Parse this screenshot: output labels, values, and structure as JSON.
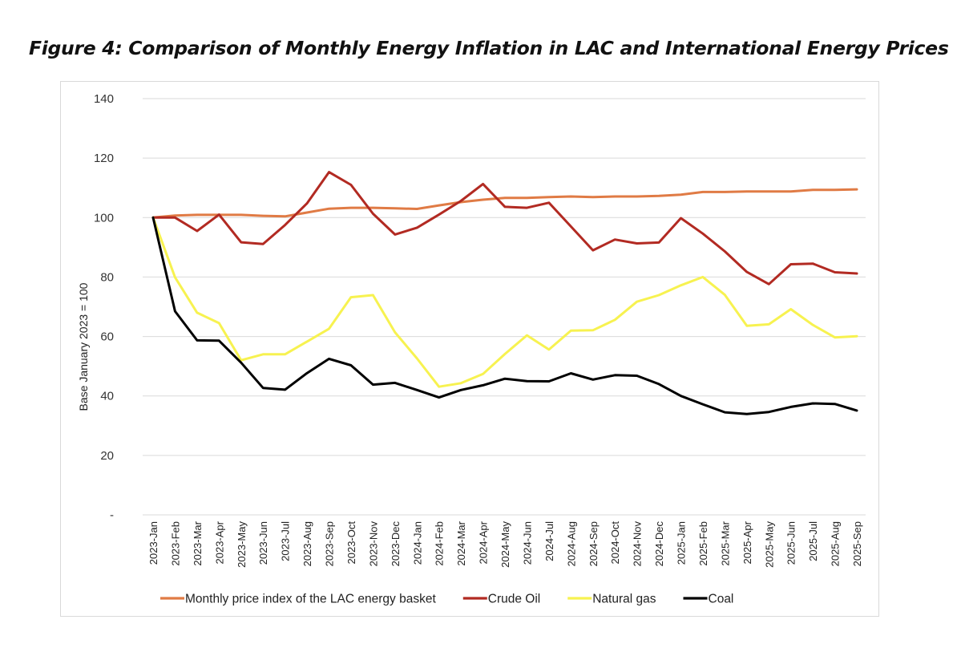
{
  "figure": {
    "title": "Figure 4: Comparison of Monthly Energy Inflation in LAC and International Energy Prices"
  },
  "chart_data": {
    "type": "line",
    "title": "Figure 4: Comparison of Monthly Energy Inflation in LAC and International Energy Prices",
    "xlabel": "",
    "ylabel": "Base January 2023 = 100",
    "ylim": [
      0,
      140
    ],
    "yticks": [
      0,
      20,
      40,
      60,
      80,
      100,
      120,
      140
    ],
    "ytick_labels": [
      "-",
      "20",
      "40",
      "60",
      "80",
      "100",
      "120",
      "140"
    ],
    "grid": "horizontal",
    "legend_position": "bottom",
    "x": [
      "2023-Jan",
      "2023-Feb",
      "2023-Mar",
      "2023-Apr",
      "2023-May",
      "2023-Jun",
      "2023-Jul",
      "2023-Aug",
      "2023-Sep",
      "2023-Oct",
      "2023-Nov",
      "2023-Dec",
      "2024-Jan",
      "2024-Feb",
      "2024-Mar",
      "2024-Apr",
      "2024-May",
      "2024-Jun",
      "2024-Jul",
      "2024-Aug",
      "2024-Sep",
      "2024-Oct",
      "2024-Nov",
      "2024-Dec",
      "2025-Jan",
      "2025-Feb",
      "2025-Mar",
      "2025-Apr",
      "2025-May",
      "2025-Jun",
      "2025-Jul",
      "2025-Aug",
      "2025-Sep"
    ],
    "series": [
      {
        "name": "Monthly price index of the LAC energy basket",
        "color": "#e07b45",
        "values": [
          100,
          100.7,
          100.9,
          100.9,
          100.9,
          100.6,
          100.4,
          101.7,
          103.0,
          103.3,
          103.3,
          103.1,
          102.9,
          104.1,
          105.2,
          106.0,
          106.6,
          106.6,
          106.9,
          107.1,
          106.9,
          107.1,
          107.1,
          107.3,
          107.7,
          108.6,
          108.6,
          108.8,
          108.8,
          108.8,
          109.3,
          109.3,
          109.5
        ]
      },
      {
        "name": "Crude Oil",
        "color": "#b22a22",
        "values": [
          100,
          100,
          95.5,
          101,
          91.7,
          91.1,
          97.5,
          104.8,
          115.3,
          111.0,
          101.3,
          94.3,
          96.6,
          101.0,
          105.6,
          111.3,
          103.6,
          103.3,
          105.0,
          97.0,
          89.0,
          92.6,
          91.3,
          91.6,
          99.8,
          94.6,
          88.6,
          81.7,
          77.6,
          84.3,
          84.5,
          81.6,
          81.2
        ]
      },
      {
        "name": "Natural gas",
        "color": "#f7f250",
        "values": [
          100,
          79.9,
          68.0,
          64.5,
          52.0,
          54.0,
          54.0,
          58.3,
          62.6,
          73.2,
          73.9,
          61.4,
          52.6,
          43.1,
          44.3,
          47.4,
          54.1,
          60.4,
          55.6,
          62.0,
          62.1,
          65.6,
          71.7,
          73.9,
          77.2,
          80.0,
          74.0,
          63.6,
          64.1,
          69.2,
          63.9,
          59.7,
          60.1
        ]
      },
      {
        "name": "Coal",
        "color": "#000000",
        "values": [
          100,
          68.5,
          58.7,
          58.6,
          51.2,
          42.7,
          42.1,
          47.7,
          52.5,
          50.3,
          43.8,
          44.4,
          42.0,
          39.5,
          42.0,
          43.6,
          45.8,
          45.0,
          44.9,
          47.6,
          45.5,
          47.0,
          46.8,
          44.0,
          40.0,
          37.2,
          34.5,
          33.9,
          34.6,
          36.3,
          37.5,
          37.3,
          35.1
        ]
      }
    ]
  }
}
